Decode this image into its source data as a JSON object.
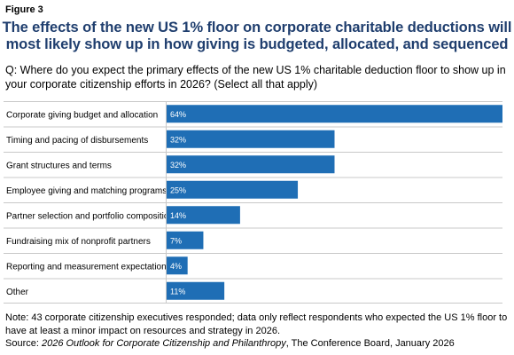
{
  "figure_label": "Figure 3",
  "title": "The effects of the new US 1% floor on corporate charitable deductions will most likely show up in how giving is budgeted, allocated, and sequenced",
  "question": "Q: Where do you expect the primary effects of the new US 1% charitable deduction floor to show up in your corporate citizenship efforts in 2026? (Select all that apply)",
  "note": "Note: 43 corporate citizenship executives responded; data only reflect respondents who expected the US 1% floor to have at least a minor impact on resources and strategy in 2026.",
  "source": {
    "prefix": "Source: ",
    "title": "2026 Outlook for Corporate Citizenship and Philanthropy",
    "suffix": ", The Conference Board, January 2026"
  },
  "colors": {
    "bar": "#1f6eb5",
    "title": "#1f3e6e",
    "gridline": "#c8c8c8",
    "bar_label": "#ffffff"
  },
  "chart_data": {
    "type": "bar",
    "orientation": "horizontal",
    "categories": [
      "Corporate giving budget and allocation",
      "Timing and pacing of disbursements",
      "Grant structures and terms",
      "Employee giving and matching programs",
      "Partner selection and portfolio composition",
      "Fundraising mix of nonprofit partners",
      "Reporting and measurement expectations",
      "Other"
    ],
    "values": [
      64,
      32,
      32,
      25,
      14,
      7,
      4,
      11
    ],
    "value_labels": [
      "64%",
      "32%",
      "32%",
      "25%",
      "14%",
      "7%",
      "4%",
      "11%"
    ],
    "xlim": [
      0,
      64
    ],
    "unit": "%",
    "grid": false,
    "legend": "none"
  }
}
